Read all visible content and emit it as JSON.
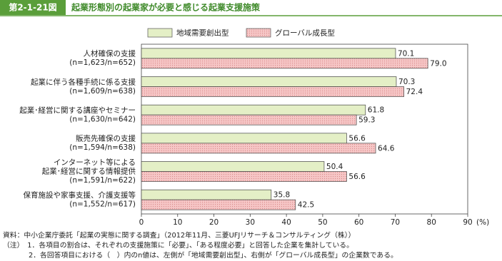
{
  "figure_label": "第2-1-21図",
  "chart_data": {
    "type": "hbar",
    "title": "起業形態別の起業家が必要と感じる起業支援施策",
    "categories": [
      [
        "人材確保の支援",
        "(n=1,623/n=652)"
      ],
      [
        "起業に伴う各種手続に係る支援",
        "(n=1,609/n=638)"
      ],
      [
        "起業･経営に関する講座やセミナー",
        "(n=1,630/n=642)"
      ],
      [
        "販売先確保の支援",
        "(n=1,594/n=638)"
      ],
      [
        "インターネット等による",
        "起業･経営に関する情報提供",
        "(n=1,591/n=622)"
      ],
      [
        "保育施設や家事支援、介護支援等",
        "(n=1,552/n=617)"
      ]
    ],
    "series": [
      {
        "name": "地域需要創出型",
        "color": "#e4efc6",
        "values": [
          70.1,
          70.3,
          61.8,
          56.6,
          50.4,
          35.8
        ],
        "value_labels": [
          "70.1",
          "70.3",
          "61.8",
          "56.6",
          "50.4",
          "35.8"
        ]
      },
      {
        "name": "グローバル成長型",
        "color": "#f6c6c6",
        "values": [
          79.0,
          72.4,
          59.3,
          64.6,
          56.6,
          42.5
        ],
        "value_labels": [
          "79.0",
          "72.4",
          "59.3",
          "64.6",
          "56.6",
          "42.5"
        ]
      }
    ],
    "xlim": [
      0,
      90
    ],
    "xticks": [
      0,
      10,
      20,
      30,
      40,
      50,
      60,
      70,
      80,
      90
    ],
    "x_unit": "(%)",
    "grid": false
  },
  "notes": [
    "資料：中小企業庁委託「起業の実態に関する調査」（2012年11月、三菱UFJリサーチ＆コンサルティング（株））",
    "（注）　1．各項目の割合は、それぞれの支援施策に「必要」、「ある程度必要」と回答した企業を集計している。",
    "2．各回答項目における（　）内のn値は、左側が「地域需要創出型」、右側が「グローバル成長型」の企業数である。"
  ]
}
